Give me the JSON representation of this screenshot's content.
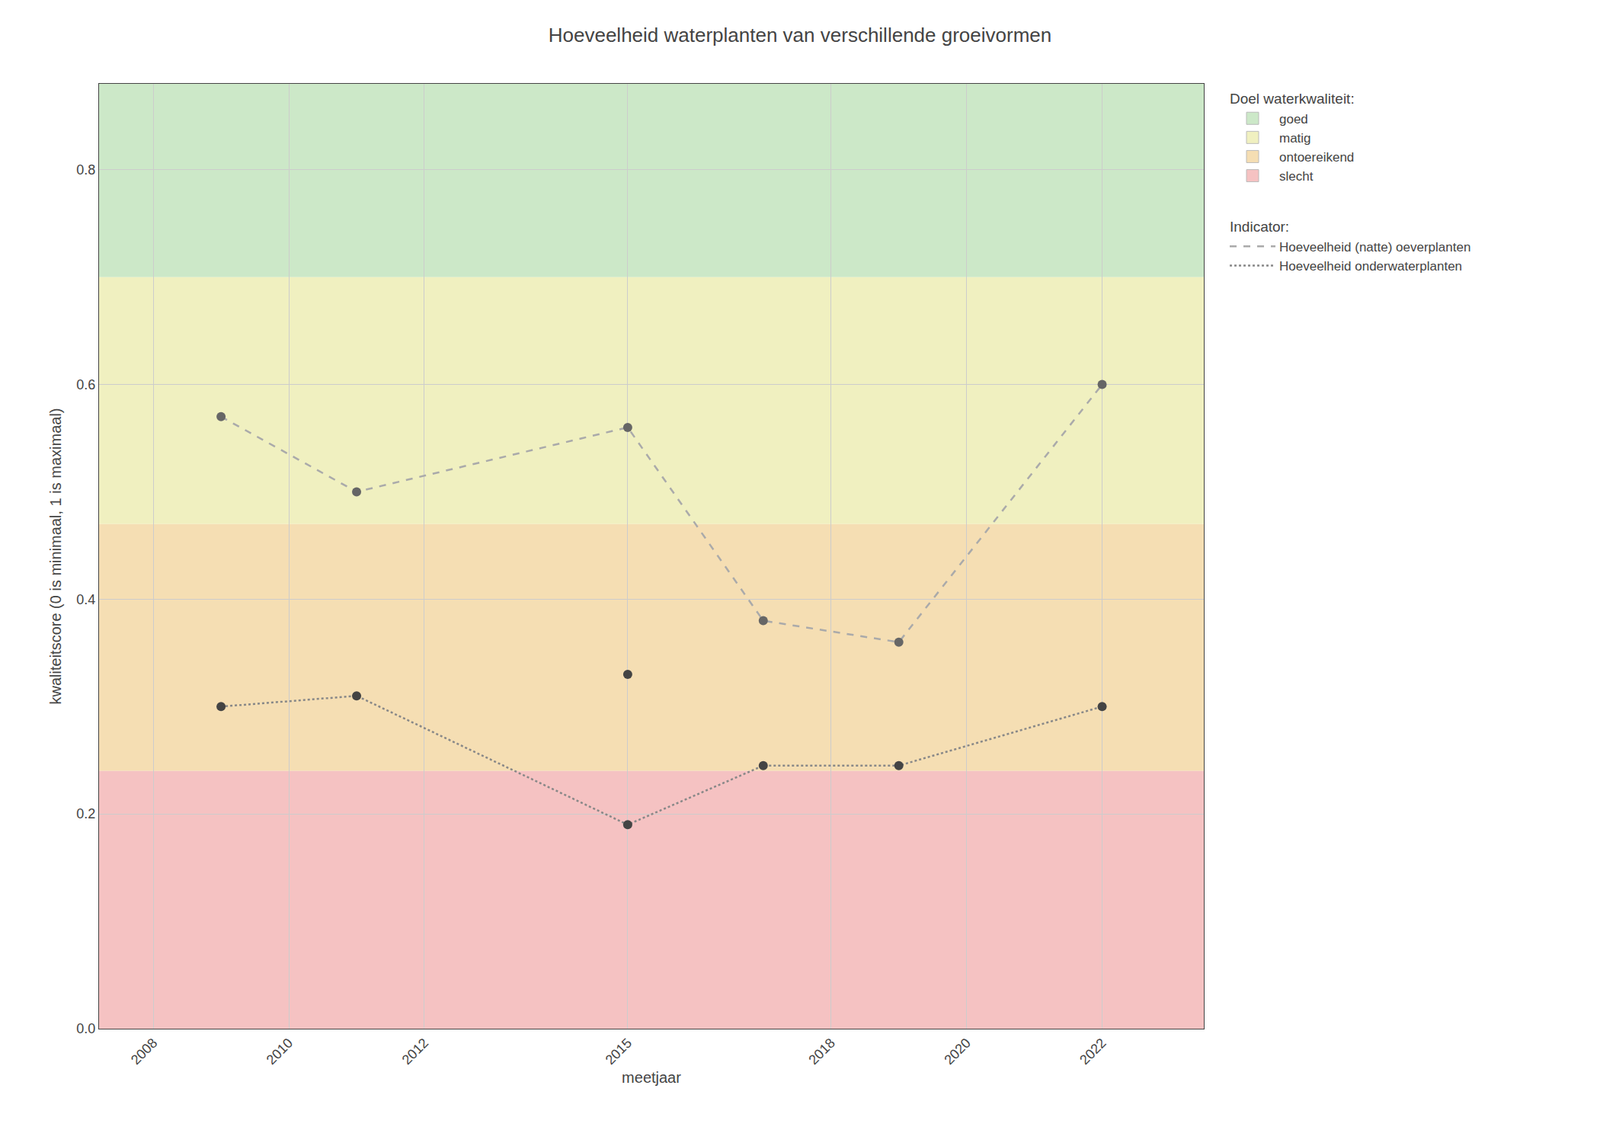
{
  "chart_data": {
    "type": "line",
    "title": "Hoeveelheid waterplanten van verschillende groeivormen",
    "x_label": "meetjaar",
    "y_label": "kwaliteitscore (0 is minimaal, 1 is maximaal)",
    "xlim": [
      2007.2,
      2023.5
    ],
    "xticks": [
      2008,
      2010,
      2012,
      2015,
      2018,
      2020,
      2022
    ],
    "ylim": [
      0.0,
      0.88
    ],
    "yticks": [
      {
        "value": 0.0,
        "label": "0.0"
      },
      0.2,
      0.4,
      0.6,
      0.8
    ],
    "grid": true,
    "legend": "right",
    "zones_title": "Doel waterkwaliteit:",
    "zones": [
      {
        "name": "goed",
        "from": 0.7,
        "to": 0.88,
        "color": "#cce8c8"
      },
      {
        "name": "matig",
        "from": 0.47,
        "to": 0.7,
        "color": "#f0f0c0"
      },
      {
        "name": "ontoereikend",
        "from": 0.24,
        "to": 0.47,
        "color": "#f5deb3"
      },
      {
        "name": "slecht",
        "from": 0.0,
        "to": 0.24,
        "color": "#f5c2c2"
      }
    ],
    "series_title": "Indicator:",
    "series": [
      {
        "name": "Hoeveelheid (natte) oeverplanten",
        "type": "line",
        "line_style": "dashed",
        "color": "#aaaaaa",
        "x": [
          2009,
          2011,
          2015,
          2017,
          2019,
          2022
        ],
        "values": [
          0.57,
          0.5,
          0.56,
          0.38,
          0.36,
          0.6
        ]
      },
      {
        "type": "scatter",
        "color": "#666666",
        "x": [
          2009,
          2011,
          2015,
          2017,
          2019,
          2022
        ],
        "values": [
          0.57,
          0.5,
          0.56,
          0.38,
          0.36,
          0.6
        ]
      },
      {
        "name": "Hoeveelheid onderwaterplanten",
        "type": "line",
        "line_style": "dotted",
        "color": "#888888",
        "x": [
          2009,
          2011,
          2015,
          2017,
          2019,
          2022
        ],
        "values": [
          0.3,
          0.31,
          0.19,
          0.245,
          0.245,
          0.3
        ]
      },
      {
        "type": "scatter",
        "color": "#444444",
        "x": [
          2009,
          2011,
          2015,
          2015,
          2017,
          2019,
          2022
        ],
        "values": [
          0.3,
          0.31,
          0.19,
          0.33,
          0.245,
          0.245,
          0.3
        ]
      }
    ]
  }
}
